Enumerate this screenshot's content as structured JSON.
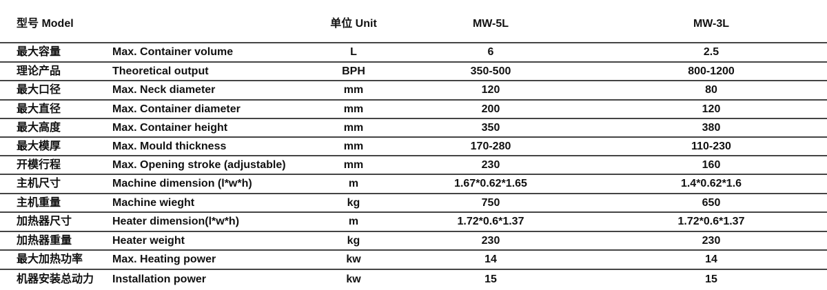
{
  "header": {
    "model": "型号 Model",
    "unit": "单位 Unit",
    "models": [
      "MW-5L",
      "MW-3L"
    ]
  },
  "rows": [
    {
      "cn": "最大容量",
      "en": "Max. Container volume",
      "unit": "L",
      "v1": "6",
      "v2": "2.5"
    },
    {
      "cn": "理论产品",
      "en": "Theoretical output",
      "unit": "BPH",
      "v1": "350-500",
      "v2": "800-1200"
    },
    {
      "cn": "最大口径",
      "en": "Max. Neck diameter",
      "unit": "mm",
      "v1": "120",
      "v2": "80"
    },
    {
      "cn": "最大直径",
      "en": "Max. Container diameter",
      "unit": "mm",
      "v1": "200",
      "v2": "120"
    },
    {
      "cn": "最大高度",
      "en": "Max. Container height",
      "unit": "mm",
      "v1": "350",
      "v2": "380"
    },
    {
      "cn": "最大模厚",
      "en": "Max. Mould thickness",
      "unit": "mm",
      "v1": "170-280",
      "v2": "110-230"
    },
    {
      "cn": "开模行程",
      "en": "Max. Opening stroke (adjustable)",
      "unit": "mm",
      "v1": "230",
      "v2": "160"
    },
    {
      "cn": "主机尺寸",
      "en": "Machine dimension (l*w*h)",
      "unit": "m",
      "v1": "1.67*0.62*1.65",
      "v2": "1.4*0.62*1.6"
    },
    {
      "cn": "主机重量",
      "en": "Machine wieght",
      "unit": "kg",
      "v1": "750",
      "v2": "650"
    },
    {
      "cn": "加热器尺寸",
      "en": "Heater dimension(l*w*h)",
      "unit": "m",
      "v1": "1.72*0.6*1.37",
      "v2": "1.72*0.6*1.37"
    },
    {
      "cn": "加热器重量",
      "en": "Heater weight",
      "unit": "kg",
      "v1": "230",
      "v2": "230"
    },
    {
      "cn": "最大加热功率",
      "en": "Max. Heating power",
      "unit": "kw",
      "v1": "14",
      "v2": "14"
    },
    {
      "cn": "机器安装总动力",
      "en": "Installation power",
      "unit": "kw",
      "v1": "15",
      "v2": "15"
    }
  ]
}
